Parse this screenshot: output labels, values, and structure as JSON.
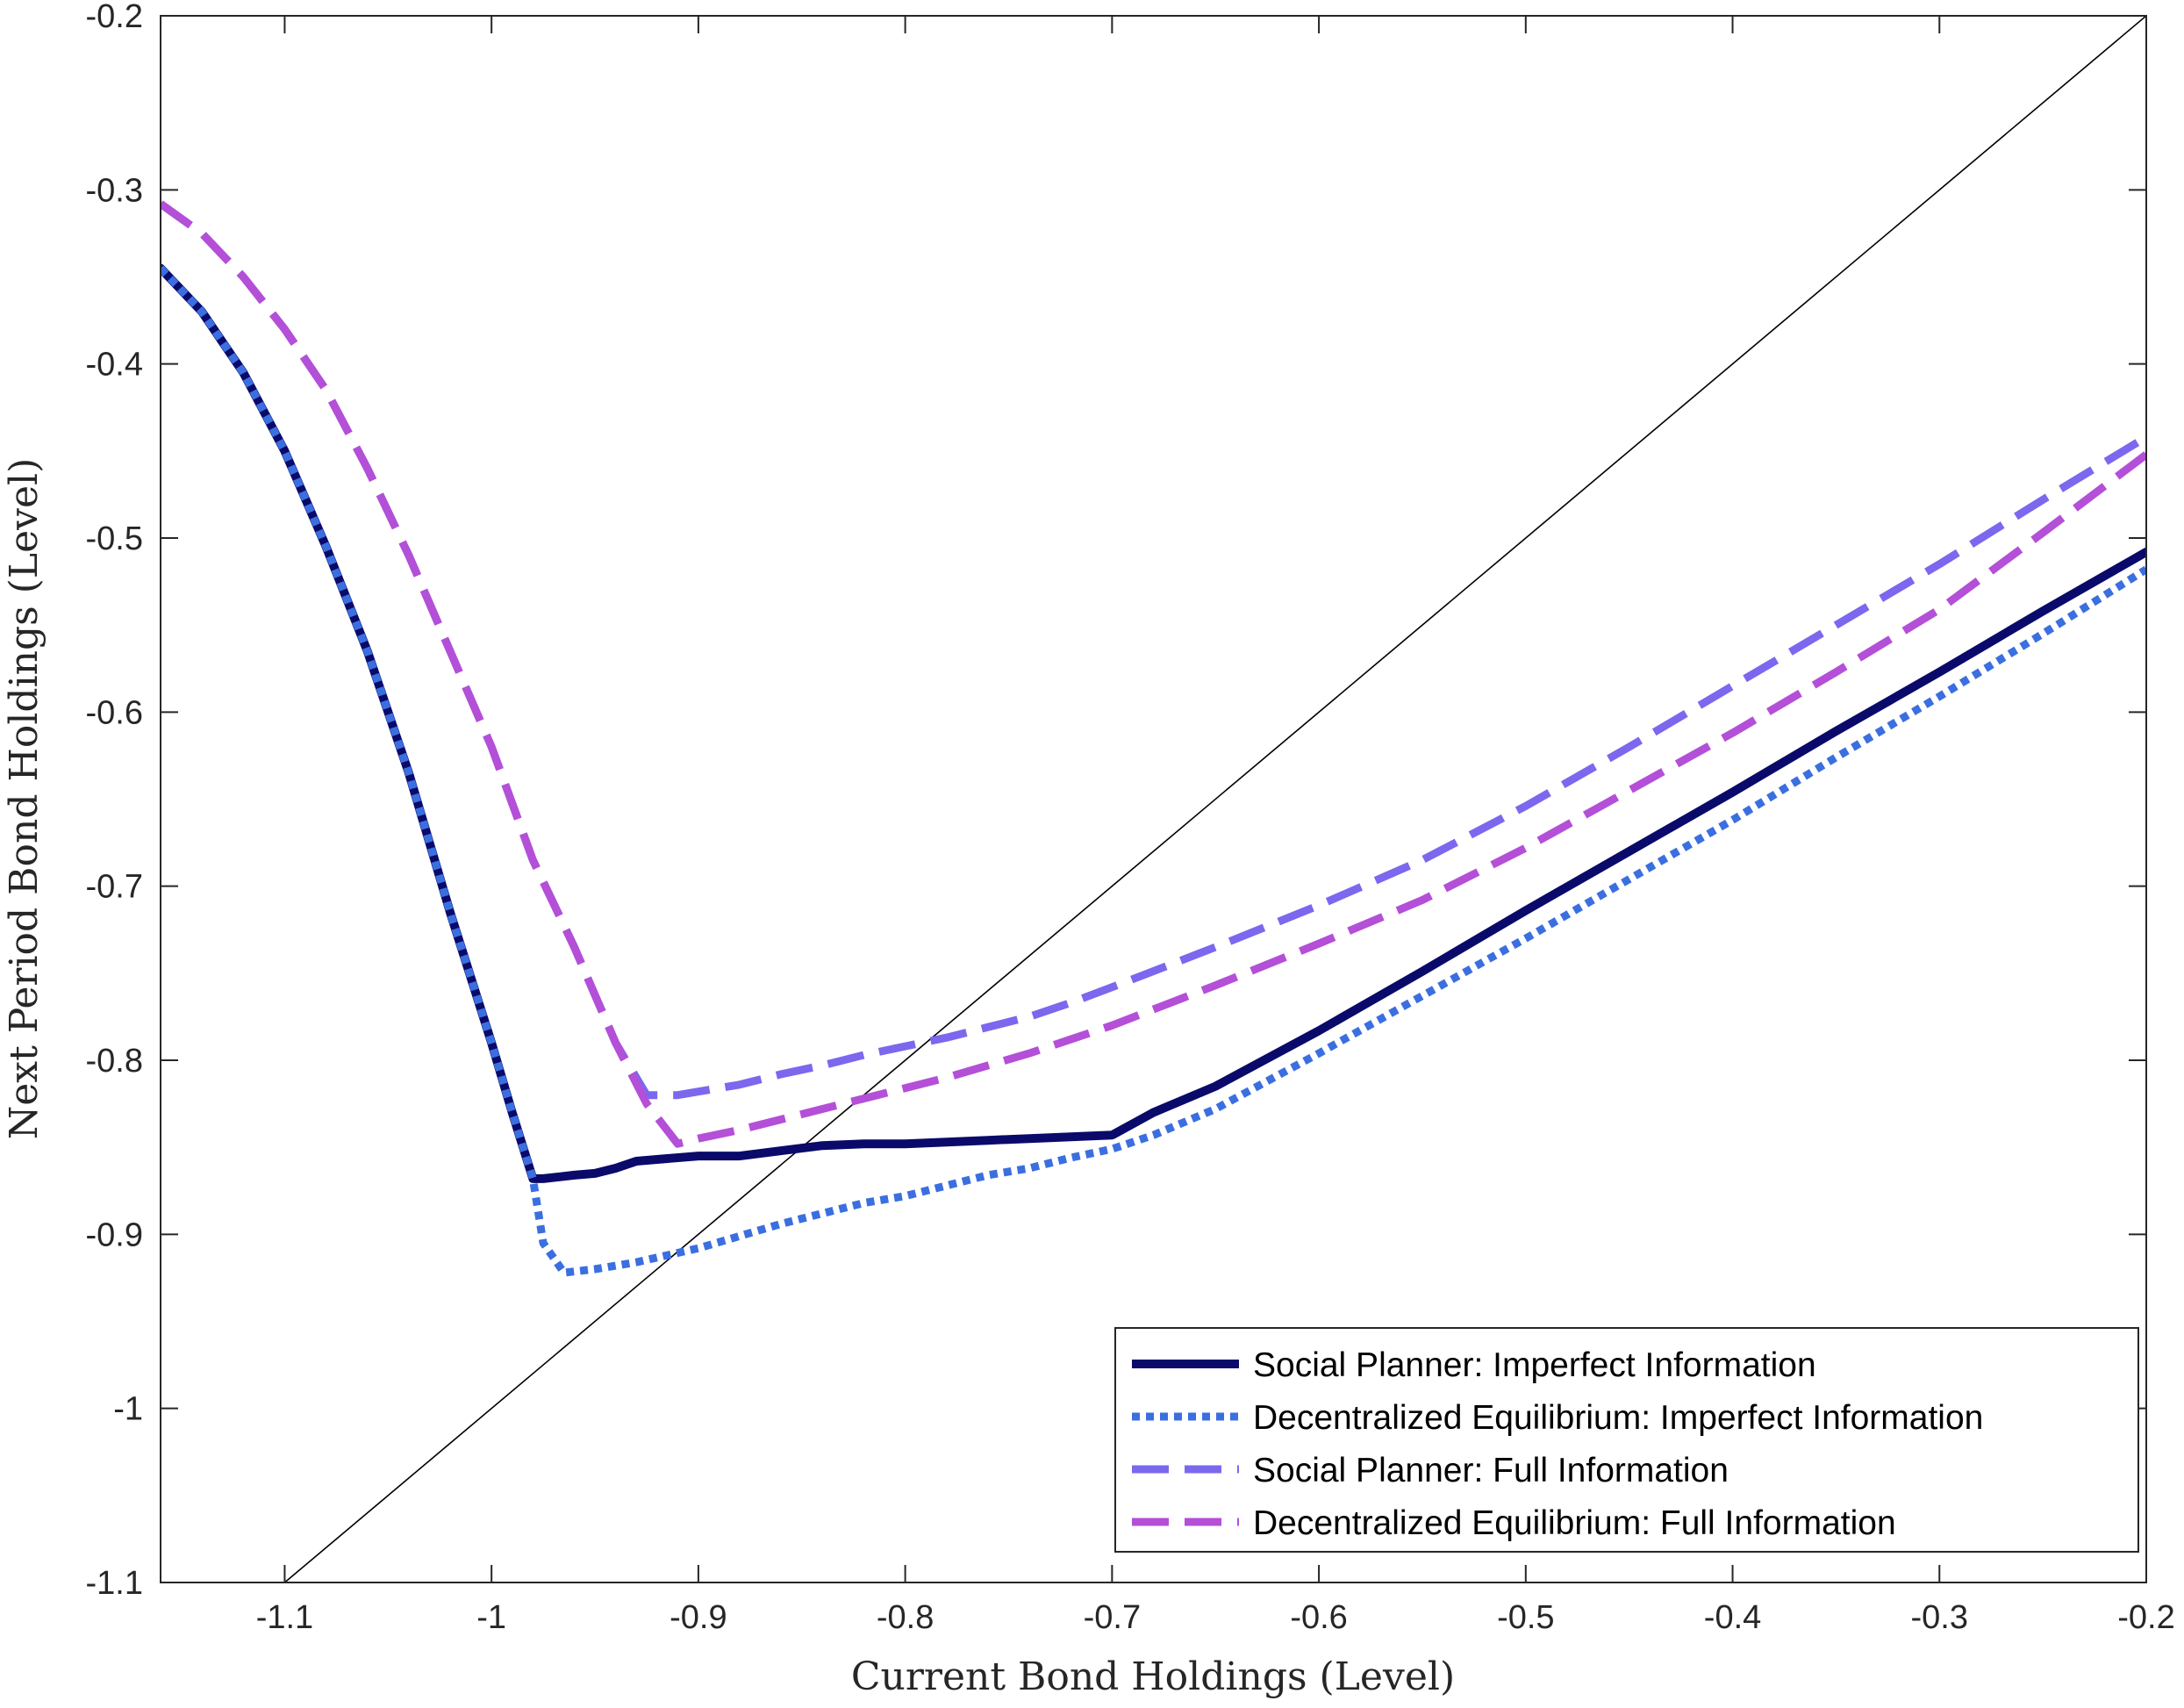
{
  "chart_data": {
    "type": "line",
    "xlabel": "Current Bond Holdings (Level)",
    "ylabel": "Next Period Bond Holdings (Level)",
    "xlim": [
      -1.16,
      -0.2
    ],
    "ylim": [
      -1.1,
      -0.2
    ],
    "xticks": [
      -1.1,
      -1,
      -0.9,
      -0.8,
      -0.7,
      -0.6,
      -0.5,
      -0.4,
      -0.3,
      -0.2
    ],
    "xtick_labels": [
      "-1.1",
      "-1",
      "-0.9",
      "-0.8",
      "-0.7",
      "-0.6",
      "-0.5",
      "-0.4",
      "-0.3",
      "-0.2"
    ],
    "yticks": [
      -1.1,
      -1,
      -0.9,
      -0.8,
      -0.7,
      -0.6,
      -0.5,
      -0.4,
      -0.3,
      -0.2
    ],
    "ytick_labels": [
      "-1.1",
      "-1",
      "-0.9",
      "-0.8",
      "-0.7",
      "-0.6",
      "-0.5",
      "-0.4",
      "-0.3",
      "-0.2"
    ],
    "grid": false,
    "legend_position": "bottom-right",
    "reference_line": {
      "style": "solid",
      "color": "#000000",
      "x": [
        -1.1,
        -0.2
      ],
      "y": [
        -1.1,
        -0.2
      ]
    },
    "series": [
      {
        "name": "Social Planner: Imperfect Information",
        "color": "#0a0a6b",
        "style": "solid",
        "x": [
          -1.16,
          -1.14,
          -1.12,
          -1.1,
          -1.08,
          -1.06,
          -1.04,
          -1.02,
          -1.0,
          -0.99,
          -0.98,
          -0.975,
          -0.96,
          -0.95,
          -0.94,
          -0.93,
          -0.92,
          -0.9,
          -0.88,
          -0.86,
          -0.84,
          -0.82,
          -0.8,
          -0.78,
          -0.76,
          -0.74,
          -0.72,
          -0.7,
          -0.68,
          -0.65,
          -0.6,
          -0.55,
          -0.5,
          -0.45,
          -0.4,
          -0.35,
          -0.3,
          -0.25,
          -0.2
        ],
        "y": [
          -0.345,
          -0.37,
          -0.405,
          -0.45,
          -0.505,
          -0.565,
          -0.635,
          -0.715,
          -0.79,
          -0.83,
          -0.868,
          -0.868,
          -0.866,
          -0.865,
          -0.862,
          -0.858,
          -0.857,
          -0.855,
          -0.855,
          -0.852,
          -0.849,
          -0.848,
          -0.848,
          -0.847,
          -0.846,
          -0.845,
          -0.844,
          -0.843,
          -0.83,
          -0.815,
          -0.783,
          -0.749,
          -0.714,
          -0.68,
          -0.646,
          -0.611,
          -0.577,
          -0.542,
          -0.508
        ]
      },
      {
        "name": "Decentralized Equilibrium: Imperfect Information",
        "color": "#3b6fe0",
        "style": "dotted",
        "x": [
          -1.16,
          -1.14,
          -1.12,
          -1.1,
          -1.08,
          -1.06,
          -1.04,
          -1.02,
          -1.0,
          -0.99,
          -0.98,
          -0.975,
          -0.965,
          -0.95,
          -0.93,
          -0.9,
          -0.88,
          -0.86,
          -0.84,
          -0.82,
          -0.8,
          -0.78,
          -0.76,
          -0.74,
          -0.72,
          -0.7,
          -0.68,
          -0.65,
          -0.6,
          -0.55,
          -0.5,
          -0.45,
          -0.4,
          -0.35,
          -0.3,
          -0.25,
          -0.2
        ],
        "y": [
          -0.345,
          -0.37,
          -0.405,
          -0.45,
          -0.505,
          -0.565,
          -0.635,
          -0.715,
          -0.79,
          -0.83,
          -0.868,
          -0.905,
          -0.922,
          -0.92,
          -0.916,
          -0.908,
          -0.901,
          -0.894,
          -0.888,
          -0.882,
          -0.878,
          -0.872,
          -0.866,
          -0.862,
          -0.856,
          -0.851,
          -0.843,
          -0.828,
          -0.796,
          -0.763,
          -0.73,
          -0.696,
          -0.662,
          -0.626,
          -0.591,
          -0.555,
          -0.518
        ]
      },
      {
        "name": "Social Planner: Full Information",
        "color": "#7b68ee",
        "style": "dashed",
        "x": [
          -1.16,
          -1.14,
          -1.12,
          -1.1,
          -1.08,
          -1.06,
          -1.04,
          -1.02,
          -1.0,
          -0.98,
          -0.96,
          -0.94,
          -0.925,
          -0.91,
          -0.9,
          -0.88,
          -0.86,
          -0.84,
          -0.82,
          -0.8,
          -0.78,
          -0.76,
          -0.74,
          -0.72,
          -0.7,
          -0.65,
          -0.6,
          -0.55,
          -0.5,
          -0.45,
          -0.4,
          -0.35,
          -0.3,
          -0.25,
          -0.2
        ],
        "y": [
          -0.308,
          -0.325,
          -0.35,
          -0.38,
          -0.415,
          -0.46,
          -0.51,
          -0.565,
          -0.62,
          -0.685,
          -0.735,
          -0.79,
          -0.82,
          -0.82,
          -0.818,
          -0.814,
          -0.808,
          -0.803,
          -0.797,
          -0.792,
          -0.787,
          -0.781,
          -0.775,
          -0.767,
          -0.758,
          -0.735,
          -0.711,
          -0.685,
          -0.654,
          -0.62,
          -0.585,
          -0.55,
          -0.515,
          -0.478,
          -0.442
        ]
      },
      {
        "name": "Decentralized Equilibrium: Full Information",
        "color": "#b44fd8",
        "style": "dashed",
        "x": [
          -1.16,
          -1.14,
          -1.12,
          -1.1,
          -1.08,
          -1.06,
          -1.04,
          -1.02,
          -1.0,
          -0.98,
          -0.96,
          -0.94,
          -0.925,
          -0.91,
          -0.9,
          -0.88,
          -0.86,
          -0.84,
          -0.82,
          -0.8,
          -0.78,
          -0.76,
          -0.74,
          -0.72,
          -0.7,
          -0.65,
          -0.6,
          -0.55,
          -0.5,
          -0.45,
          -0.4,
          -0.35,
          -0.3,
          -0.25,
          -0.2
        ],
        "y": [
          -0.308,
          -0.325,
          -0.35,
          -0.38,
          -0.415,
          -0.46,
          -0.51,
          -0.565,
          -0.62,
          -0.685,
          -0.735,
          -0.79,
          -0.825,
          -0.848,
          -0.845,
          -0.84,
          -0.834,
          -0.828,
          -0.822,
          -0.816,
          -0.81,
          -0.803,
          -0.796,
          -0.788,
          -0.78,
          -0.757,
          -0.733,
          -0.708,
          -0.678,
          -0.645,
          -0.612,
          -0.577,
          -0.541,
          -0.497,
          -0.452
        ]
      }
    ]
  }
}
